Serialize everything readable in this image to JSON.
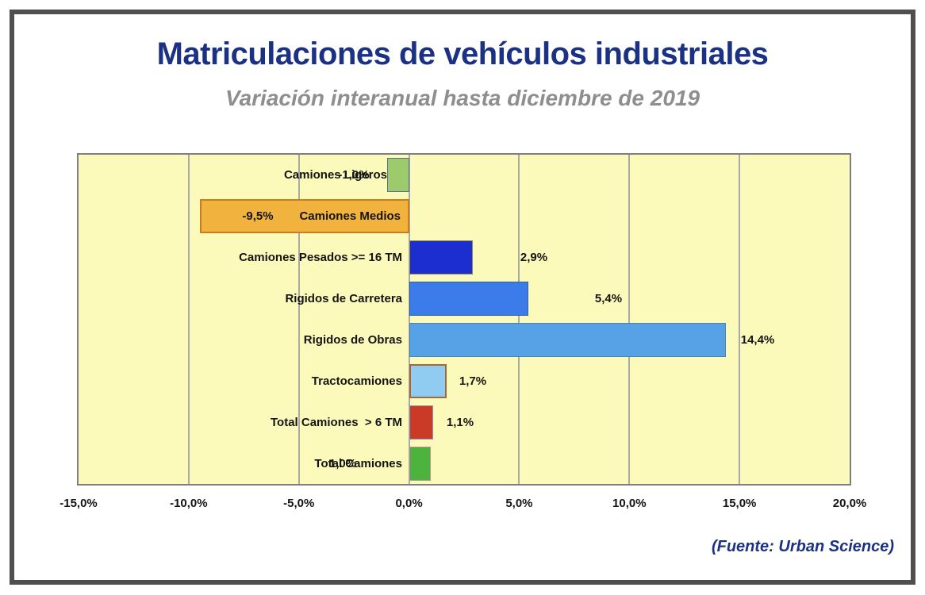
{
  "header": {
    "title": "Matriculaciones de vehículos industriales",
    "subtitle": "Variación interanual hasta diciembre de 2019"
  },
  "footer": {
    "source": "(Fuente: Urban Science)"
  },
  "colors": {
    "title": "#1b3184",
    "subtitle": "#8e8e8e",
    "plot_background": "#fcfabb",
    "gridline": "#a9a9a9",
    "plot_border": "#7f7f7f",
    "frame_border": "#4f4f4f",
    "label_text": "#141414"
  },
  "chart_data": {
    "type": "bar",
    "orientation": "horizontal",
    "title": "Matriculaciones de vehículos industriales",
    "subtitle": "Variación interanual hasta diciembre de 2019",
    "categories": [
      "Camiones Ligeros",
      "Camiones Medios",
      "Camiones Pesados >= 16 TM",
      "Rigidos de Carretera",
      "Rigidos de Obras",
      "Tractocamiones",
      "Total Camiones  > 6 TM",
      "Total Camiones"
    ],
    "values": [
      -1.0,
      -9.5,
      2.9,
      5.4,
      14.4,
      1.7,
      1.1,
      1.0
    ],
    "value_labels": [
      "-1,0%",
      "-9,5%",
      "2,9%",
      "5,4%",
      "14,4%",
      "1,7%",
      "1,1%",
      "1,0%"
    ],
    "bar_fill_colors": [
      "#9dcb6c",
      "#f2b23e",
      "#1c2ed0",
      "#3c7bea",
      "#57a1e6",
      "#90cbf2",
      "#cb3a27",
      "#4cb43c"
    ],
    "bar_border_colors": [
      "#5b6e94",
      "#c87d1f",
      "#8b8b55",
      "#2e5fa3",
      "#4a84ae",
      "#a5683b",
      "#8c93ab",
      "#ba8f98"
    ],
    "xlim": [
      -15,
      20
    ],
    "x_ticks": [
      {
        "label": "-15,0%",
        "value": -15
      },
      {
        "label": "-10,0%",
        "value": -10
      },
      {
        "label": "-5,0%",
        "value": -5
      },
      {
        "label": "0,0%",
        "value": 0
      },
      {
        "label": "5,0%",
        "value": 5
      },
      {
        "label": "10,0%",
        "value": 10
      },
      {
        "label": "15,0%",
        "value": 15
      },
      {
        "label": "20,0%",
        "value": 20
      }
    ],
    "grid": true,
    "legend": false
  }
}
